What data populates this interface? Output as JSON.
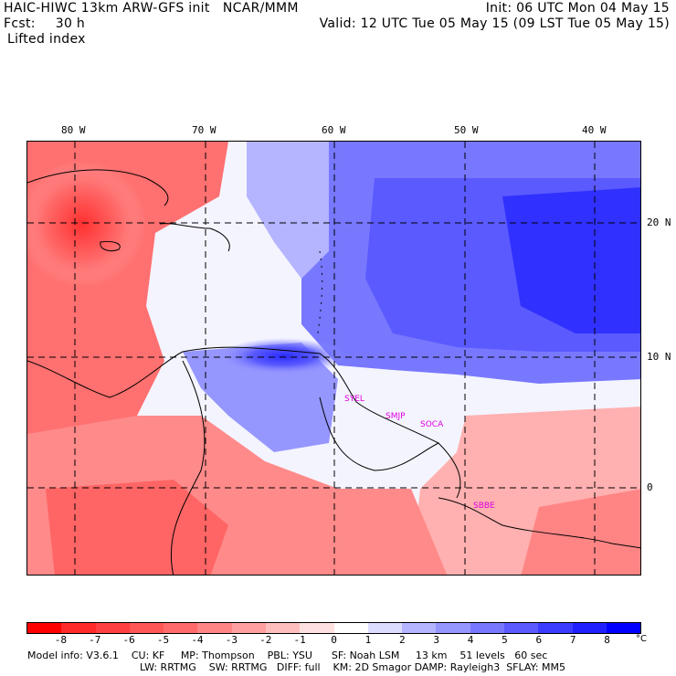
{
  "header": {
    "model_title": "HAIC-HIWC 13km ARW-GFS init   NCAR/MMM",
    "fcst_label": "Fcst:",
    "fcst_value": "30 h",
    "field_name": "Lifted index",
    "init_time": "Init: 06 UTC Mon 04 May 15",
    "valid_time": "Valid: 12 UTC Tue 05 May 15 (09 LST Tue 05 May 15)"
  },
  "map": {
    "lon_labels": [
      "80 W",
      "70 W",
      "60 W",
      "50 W",
      "40 W"
    ],
    "lat_labels": [
      "20 N",
      "10 N",
      "0"
    ],
    "stations": [
      "SYEL",
      "SMJP",
      "SOCA",
      "SBBE"
    ]
  },
  "colorbar": {
    "unit": "°C",
    "tick_labels": [
      "-8",
      "-7",
      "-6",
      "-5",
      "-4",
      "-3",
      "-2",
      "-1",
      "0",
      "1",
      "2",
      "3",
      "4",
      "5",
      "6",
      "7",
      "8"
    ],
    "colors": [
      "#ff0000",
      "#ff2a2a",
      "#ff4040",
      "#ff5656",
      "#ff6b6b",
      "#ff8585",
      "#ff9f9f",
      "#ffbebe",
      "#ffe0e0",
      "#ffffff",
      "#dcdcff",
      "#b4b4ff",
      "#9696ff",
      "#7878ff",
      "#5a5aff",
      "#3c3cff",
      "#2020ff",
      "#0000ff"
    ]
  },
  "footer": {
    "line1": "Model info: V3.6.1    CU: KF     MP: Thompson    PBL: YSU      SF: Noah LSM     13 km    51 levels   60 sec",
    "line2": "LW: RRTMG    SW: RRTMG   DIFF: full    KM: 2D Smagor DAMP: Rayleigh3  SFLAY: MM5"
  }
}
